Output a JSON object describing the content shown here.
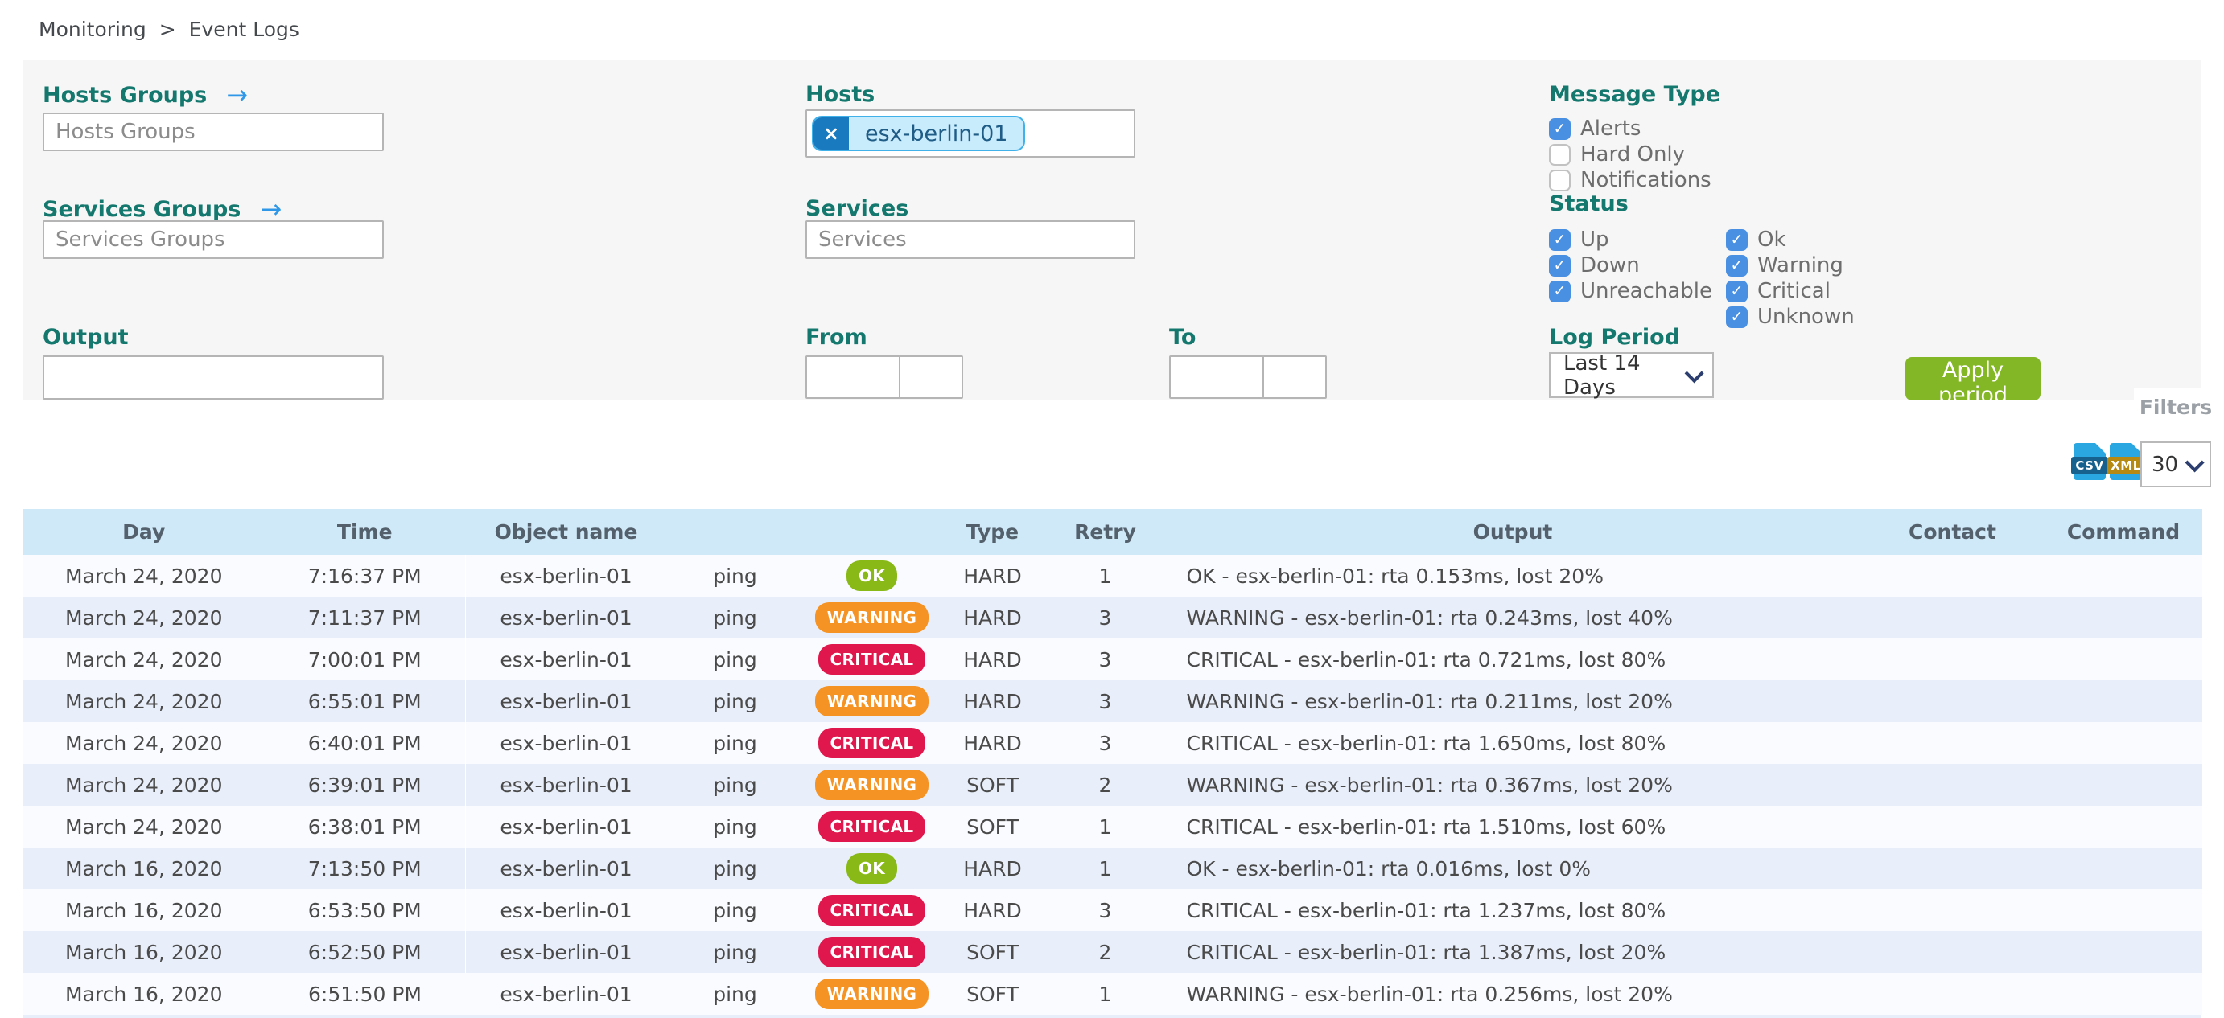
{
  "breadcrumb": {
    "items": [
      "Monitoring",
      "Event Logs"
    ],
    "separator": ">"
  },
  "filters": {
    "tab_label": "Filters",
    "hosts_groups": {
      "label": "Hosts Groups",
      "placeholder": "Hosts Groups",
      "arrow": "→"
    },
    "services_groups": {
      "label": "Services Groups",
      "placeholder": "Services Groups",
      "arrow": "→"
    },
    "hosts": {
      "label": "Hosts",
      "selected_tag": "esx-berlin-01",
      "remove_symbol": "×"
    },
    "services": {
      "label": "Services",
      "placeholder": "Services"
    },
    "output": {
      "label": "Output",
      "value": ""
    },
    "from": {
      "label": "From",
      "date_value": "",
      "time_value": ""
    },
    "to": {
      "label": "To",
      "date_value": "",
      "time_value": ""
    },
    "message_type": {
      "label": "Message Type",
      "options": [
        {
          "label": "Alerts",
          "checked": true
        },
        {
          "label": "Hard Only",
          "checked": false
        },
        {
          "label": "Notifications",
          "checked": false
        }
      ]
    },
    "status": {
      "label": "Status",
      "host_options": [
        {
          "label": "Up",
          "checked": true
        },
        {
          "label": "Down",
          "checked": true
        },
        {
          "label": "Unreachable",
          "checked": true
        }
      ],
      "service_options": [
        {
          "label": "Ok",
          "checked": true
        },
        {
          "label": "Warning",
          "checked": true
        },
        {
          "label": "Critical",
          "checked": true
        },
        {
          "label": "Unknown",
          "checked": true
        }
      ]
    },
    "log_period": {
      "label": "Log Period",
      "selected": "Last 14 Days"
    },
    "apply_button": "Apply period"
  },
  "export": {
    "csv_icon_label": "CSV",
    "xml_icon_label": "XML",
    "page_size": "30"
  },
  "table": {
    "columns": [
      "Day",
      "Time",
      "Object name",
      "",
      "",
      "Type",
      "Retry",
      "Output",
      "Contact",
      "Command"
    ],
    "rows": [
      {
        "day": "March 24, 2020",
        "time": "7:16:37 PM",
        "object_name": "esx-berlin-01",
        "service": "ping",
        "status": "OK",
        "state_type": "HARD",
        "retry": "1",
        "output": "OK - esx-berlin-01: rta 0.153ms, lost 20%",
        "contact": "",
        "command": ""
      },
      {
        "day": "March 24, 2020",
        "time": "7:11:37 PM",
        "object_name": "esx-berlin-01",
        "service": "ping",
        "status": "WARNING",
        "state_type": "HARD",
        "retry": "3",
        "output": "WARNING - esx-berlin-01: rta 0.243ms, lost 40%",
        "contact": "",
        "command": ""
      },
      {
        "day": "March 24, 2020",
        "time": "7:00:01 PM",
        "object_name": "esx-berlin-01",
        "service": "ping",
        "status": "CRITICAL",
        "state_type": "HARD",
        "retry": "3",
        "output": "CRITICAL - esx-berlin-01: rta 0.721ms, lost 80%",
        "contact": "",
        "command": ""
      },
      {
        "day": "March 24, 2020",
        "time": "6:55:01 PM",
        "object_name": "esx-berlin-01",
        "service": "ping",
        "status": "WARNING",
        "state_type": "HARD",
        "retry": "3",
        "output": "WARNING - esx-berlin-01: rta 0.211ms, lost 20%",
        "contact": "",
        "command": ""
      },
      {
        "day": "March 24, 2020",
        "time": "6:40:01 PM",
        "object_name": "esx-berlin-01",
        "service": "ping",
        "status": "CRITICAL",
        "state_type": "HARD",
        "retry": "3",
        "output": "CRITICAL - esx-berlin-01: rta 1.650ms, lost 80%",
        "contact": "",
        "command": ""
      },
      {
        "day": "March 24, 2020",
        "time": "6:39:01 PM",
        "object_name": "esx-berlin-01",
        "service": "ping",
        "status": "WARNING",
        "state_type": "SOFT",
        "retry": "2",
        "output": "WARNING - esx-berlin-01: rta 0.367ms, lost 20%",
        "contact": "",
        "command": ""
      },
      {
        "day": "March 24, 2020",
        "time": "6:38:01 PM",
        "object_name": "esx-berlin-01",
        "service": "ping",
        "status": "CRITICAL",
        "state_type": "SOFT",
        "retry": "1",
        "output": "CRITICAL - esx-berlin-01: rta 1.510ms, lost 60%",
        "contact": "",
        "command": ""
      },
      {
        "day": "March 16, 2020",
        "time": "7:13:50 PM",
        "object_name": "esx-berlin-01",
        "service": "ping",
        "status": "OK",
        "state_type": "HARD",
        "retry": "1",
        "output": "OK - esx-berlin-01: rta 0.016ms, lost 0%",
        "contact": "",
        "command": ""
      },
      {
        "day": "March 16, 2020",
        "time": "6:53:50 PM",
        "object_name": "esx-berlin-01",
        "service": "ping",
        "status": "CRITICAL",
        "state_type": "HARD",
        "retry": "3",
        "output": "CRITICAL - esx-berlin-01: rta 1.237ms, lost 80%",
        "contact": "",
        "command": ""
      },
      {
        "day": "March 16, 2020",
        "time": "6:52:50 PM",
        "object_name": "esx-berlin-01",
        "service": "ping",
        "status": "CRITICAL",
        "state_type": "SOFT",
        "retry": "2",
        "output": "CRITICAL - esx-berlin-01: rta 1.387ms, lost 20%",
        "contact": "",
        "command": ""
      },
      {
        "day": "March 16, 2020",
        "time": "6:51:50 PM",
        "object_name": "esx-berlin-01",
        "service": "ping",
        "status": "WARNING",
        "state_type": "SOFT",
        "retry": "1",
        "output": "WARNING - esx-berlin-01: rta 0.256ms, lost 20%",
        "contact": "",
        "command": ""
      }
    ]
  },
  "colors": {
    "accent_teal": "#14786e",
    "arrow_blue": "#2e97e8",
    "checkbox_blue": "#4a90e2",
    "apply_green": "#84b726",
    "status_ok": "#88b917",
    "status_warning": "#f59425",
    "status_critical": "#e0174c",
    "table_header_bg": "#cfe9f8",
    "row_alt_bg": "#e9effa",
    "panel_bg": "#f6f6f6",
    "tag_bg": "#c9ecfd",
    "tag_border": "#41b1ea",
    "tag_x_bg": "#1a7abf"
  }
}
